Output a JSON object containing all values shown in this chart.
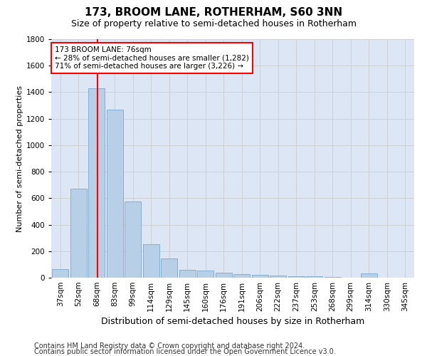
{
  "title1": "173, BROOM LANE, ROTHERHAM, S60 3NN",
  "title2": "Size of property relative to semi-detached houses in Rotherham",
  "xlabel": "Distribution of semi-detached houses by size in Rotherham",
  "ylabel": "Number of semi-detached properties",
  "categories": [
    "37sqm",
    "52sqm",
    "68sqm",
    "83sqm",
    "99sqm",
    "114sqm",
    "129sqm",
    "145sqm",
    "160sqm",
    "176sqm",
    "191sqm",
    "206sqm",
    "222sqm",
    "237sqm",
    "253sqm",
    "268sqm",
    "299sqm",
    "314sqm",
    "330sqm",
    "345sqm"
  ],
  "values": [
    65,
    670,
    1430,
    1270,
    575,
    250,
    145,
    60,
    55,
    35,
    25,
    20,
    15,
    12,
    10,
    8,
    0,
    30,
    0,
    0
  ],
  "bar_color": "#b8cfe8",
  "bar_edge_color": "#7aaad0",
  "vline_color": "red",
  "annotation_text": "173 BROOM LANE: 76sqm\n← 28% of semi-detached houses are smaller (1,282)\n71% of semi-detached houses are larger (3,226) →",
  "ylim": [
    0,
    1800
  ],
  "yticks": [
    0,
    200,
    400,
    600,
    800,
    1000,
    1200,
    1400,
    1600,
    1800
  ],
  "grid_color": "#cccccc",
  "bg_color": "#dce6f5",
  "footer1": "Contains HM Land Registry data © Crown copyright and database right 2024.",
  "footer2": "Contains public sector information licensed under the Open Government Licence v3.0.",
  "title1_fontsize": 11,
  "title2_fontsize": 9,
  "xlabel_fontsize": 9,
  "ylabel_fontsize": 8,
  "tick_fontsize": 7.5,
  "annot_fontsize": 7.5,
  "footer_fontsize": 7
}
